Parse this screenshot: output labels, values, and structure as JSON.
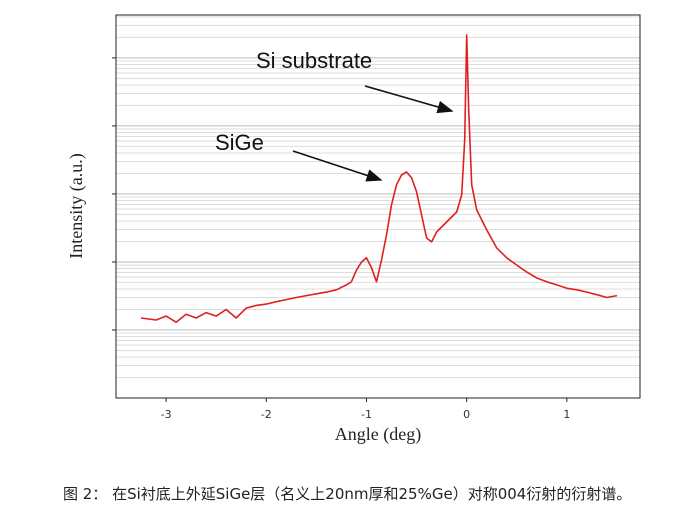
{
  "chart_data": {
    "type": "line",
    "x_label": "Angle (deg)",
    "y_label": "Intensity (a.u.)",
    "log_y": true,
    "grid": true,
    "xlim": [
      -3.5,
      1.73
    ],
    "xticks": [
      -3,
      -2,
      -1,
      0,
      1
    ],
    "ylim": [
      1,
      427000
    ],
    "annotations": [
      "Si substrate",
      "SiGe"
    ],
    "caption": "图 2： 在Si衬底上外延SiGe层（名义上20nm厚和25%Ge）对称004衍射的衍射谱。",
    "x": [
      -3.25,
      -3.1,
      -3.0,
      -2.9,
      -2.8,
      -2.7,
      -2.6,
      -2.5,
      -2.4,
      -2.3,
      -2.2,
      -2.1,
      -2.0,
      -1.9,
      -1.8,
      -1.7,
      -1.6,
      -1.5,
      -1.4,
      -1.3,
      -1.2,
      -1.15,
      -1.1,
      -1.05,
      -1.0,
      -0.95,
      -0.9,
      -0.85,
      -0.8,
      -0.75,
      -0.7,
      -0.65,
      -0.6,
      -0.55,
      -0.5,
      -0.45,
      -0.4,
      -0.35,
      -0.3,
      -0.2,
      -0.1,
      -0.05,
      -0.02,
      0.0,
      0.02,
      0.05,
      0.1,
      0.2,
      0.3,
      0.4,
      0.5,
      0.6,
      0.7,
      0.8,
      0.9,
      1.0,
      1.1,
      1.2,
      1.3,
      1.4,
      1.5
    ],
    "series": [
      {
        "name": "Intensity",
        "color": "#e02020",
        "values": [
          15,
          14,
          16,
          13,
          17,
          15,
          18,
          16,
          20,
          15,
          21,
          23,
          24,
          26,
          28,
          30,
          32,
          34,
          36,
          39,
          46,
          51,
          76,
          100,
          115,
          82,
          51,
          107,
          250,
          690,
          1360,
          1900,
          2100,
          1720,
          1070,
          490,
          225,
          197,
          276,
          387,
          543,
          970,
          6230,
          218000,
          17200,
          1360,
          582,
          296,
          161,
          115,
          90,
          71,
          58,
          51,
          46,
          41,
          39,
          36,
          33,
          30,
          32
        ]
      }
    ]
  }
}
